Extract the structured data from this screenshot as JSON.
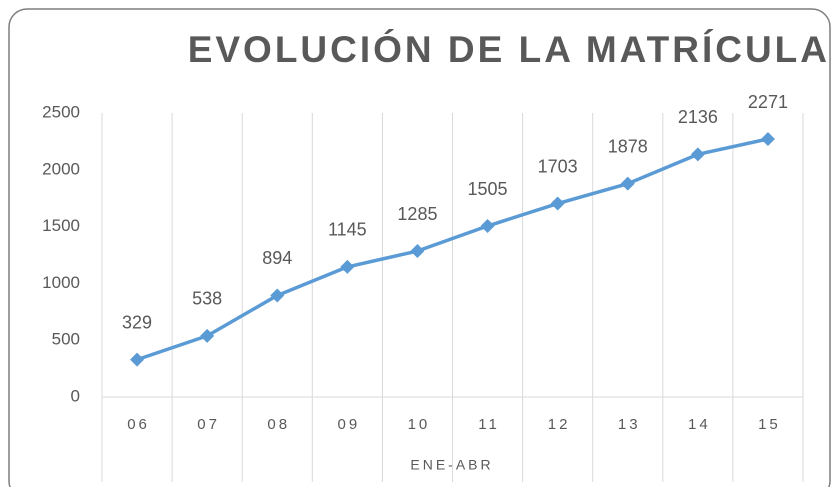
{
  "chart_data": {
    "type": "line",
    "title": "EVOLUCIÓN DE LA MATRÍCULA",
    "x_label": "ENE-ABR",
    "categories": [
      "06",
      "07",
      "08",
      "09",
      "10",
      "11",
      "12",
      "13",
      "14",
      "15"
    ],
    "values": [
      329,
      538,
      894,
      1145,
      1285,
      1505,
      1703,
      1878,
      2136,
      2271
    ],
    "color": "#5b9bd5",
    "ylim": [
      0,
      2500
    ],
    "yticks": [
      0,
      500,
      1000,
      1500,
      2000,
      2500
    ]
  }
}
